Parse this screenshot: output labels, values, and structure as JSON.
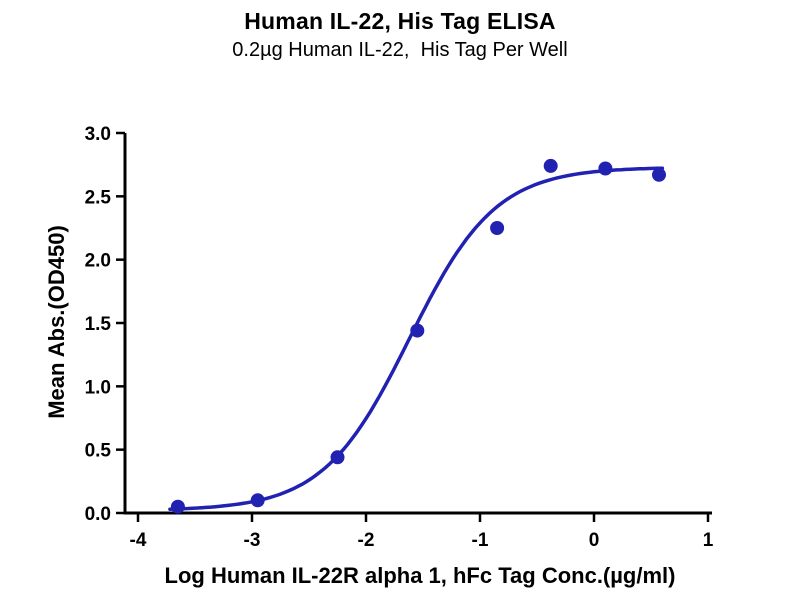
{
  "chart_data": {
    "type": "scatter",
    "title": "Human IL-22, His Tag ELISA",
    "subtitle": "0.2µg Human IL-22,  His Tag Per Well",
    "xlabel": "Log Human IL-22R alpha 1, hFc Tag Conc.(µg/ml)",
    "ylabel": "Mean Abs.(OD450)",
    "xlim": [
      -4,
      1
    ],
    "ylim": [
      0,
      3
    ],
    "xticks": [
      -4,
      -3,
      -2,
      -1,
      0,
      1
    ],
    "yticks": [
      0,
      0.5,
      1,
      1.5,
      2,
      2.5,
      3
    ],
    "points": [
      [
        -3.65,
        0.05
      ],
      [
        -2.95,
        0.1
      ],
      [
        -2.25,
        0.44
      ],
      [
        -1.55,
        1.44
      ],
      [
        -0.85,
        2.25
      ],
      [
        -0.38,
        2.74
      ],
      [
        0.1,
        2.72
      ],
      [
        0.57,
        2.67
      ]
    ],
    "fit": {
      "model": "4PL-sigmoid",
      "bottom": 0.02,
      "top": 2.73,
      "logEC50": -1.62,
      "hill": 1.15,
      "xmin": -3.72,
      "xmax": 0.62
    },
    "accent_color": "#2121b2",
    "axis_color": "#000000",
    "grid": false,
    "legend": "none",
    "marker": "filled-circle"
  }
}
